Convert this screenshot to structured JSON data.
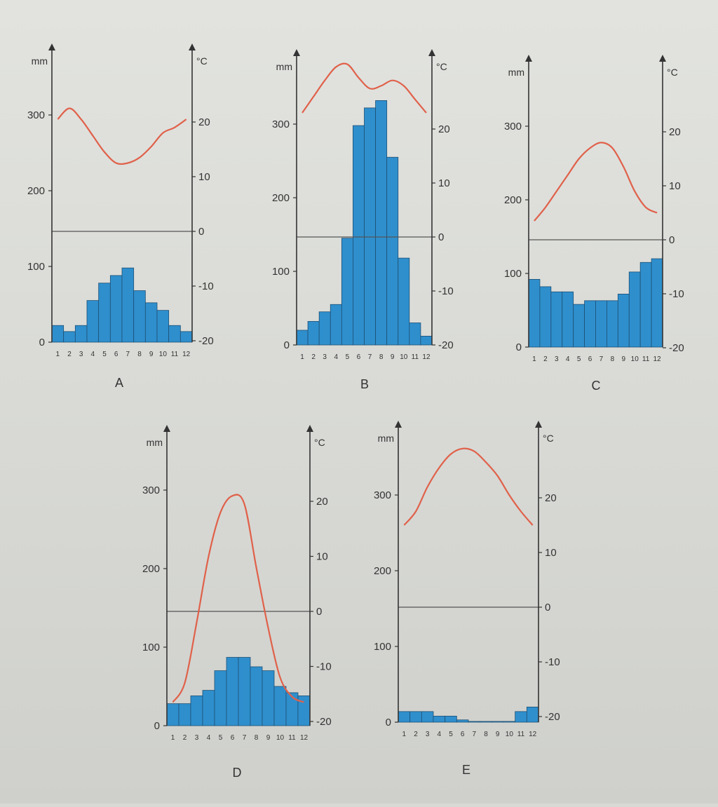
{
  "chart_data": [
    {
      "id": "A",
      "type": "bar+line",
      "label": "A",
      "precip_unit": "mm",
      "temp_unit": "°C",
      "precip_ticks": [
        "0",
        "100",
        "200",
        "300"
      ],
      "temp_ticks": [
        "-20",
        "-10",
        "0",
        "10",
        "20"
      ],
      "months": [
        "1",
        "2",
        "3",
        "4",
        "5",
        "6",
        "7",
        "8",
        "9",
        "10",
        "11",
        "12"
      ],
      "precip_ylim": [
        0,
        370
      ],
      "temp_ylim": [
        -20,
        30
      ],
      "precipitation": [
        22,
        14,
        22,
        55,
        78,
        88,
        98,
        68,
        52,
        42,
        22,
        14
      ],
      "temperature": [
        20.5,
        22.5,
        20.5,
        17.5,
        14.5,
        12.5,
        12.5,
        13.5,
        15.5,
        18,
        19,
        20.5
      ],
      "colors": {
        "bar": "#2f8fcd",
        "line": "#e0614a"
      }
    },
    {
      "id": "B",
      "type": "bar+line",
      "label": "B",
      "precip_unit": "mm",
      "temp_unit": "°C",
      "precip_ticks": [
        "0",
        "100",
        "200",
        "300"
      ],
      "temp_ticks": [
        "-20",
        "-10",
        "0",
        "10",
        "20"
      ],
      "months": [
        "1",
        "2",
        "3",
        "4",
        "5",
        "6",
        "7",
        "8",
        "9",
        "10",
        "11",
        "12"
      ],
      "precip_ylim": [
        0,
        370
      ],
      "temp_ylim": [
        -20,
        30
      ],
      "precipitation": [
        20,
        32,
        45,
        55,
        145,
        298,
        322,
        332,
        255,
        118,
        30,
        12
      ],
      "temperature": [
        23,
        26,
        29,
        31.5,
        32,
        29.5,
        27.5,
        28,
        29,
        28,
        25.5,
        23
      ],
      "colors": {
        "bar": "#2f8fcd",
        "line": "#e0614a"
      }
    },
    {
      "id": "C",
      "type": "bar+line",
      "label": "C",
      "precip_unit": "mm",
      "temp_unit": "°C",
      "precip_ticks": [
        "0",
        "100",
        "200",
        "300"
      ],
      "temp_ticks": [
        "-20",
        "-10",
        "0",
        "10",
        "20"
      ],
      "months": [
        "1",
        "2",
        "3",
        "4",
        "5",
        "6",
        "7",
        "8",
        "9",
        "10",
        "11",
        "12"
      ],
      "precip_ylim": [
        0,
        370
      ],
      "temp_ylim": [
        -20,
        30
      ],
      "precipitation": [
        92,
        82,
        75,
        75,
        58,
        63,
        63,
        63,
        72,
        102,
        115,
        120
      ],
      "temperature": [
        3.5,
        6,
        9,
        12,
        15,
        17,
        18,
        17,
        13.5,
        9,
        6,
        5
      ],
      "colors": {
        "bar": "#2f8fcd",
        "line": "#e0614a"
      }
    },
    {
      "id": "D",
      "type": "bar+line",
      "label": "D",
      "precip_unit": "mm",
      "temp_unit": "°C",
      "precip_ticks": [
        "0",
        "100",
        "200",
        "300"
      ],
      "temp_ticks": [
        "-20",
        "-10",
        "0",
        "10",
        "20"
      ],
      "months": [
        "1",
        "2",
        "3",
        "4",
        "5",
        "6",
        "7",
        "8",
        "9",
        "10",
        "11",
        "12"
      ],
      "precip_ylim": [
        0,
        370
      ],
      "temp_ylim": [
        -20,
        30
      ],
      "precipitation": [
        28,
        28,
        38,
        45,
        70,
        87,
        87,
        75,
        70,
        50,
        42,
        38
      ],
      "temperature": [
        -16.5,
        -13,
        -2,
        10,
        18,
        21,
        19.5,
        8,
        -3,
        -12,
        -15.5,
        -16.5
      ],
      "colors": {
        "bar": "#2f8fcd",
        "line": "#e0614a"
      }
    },
    {
      "id": "E",
      "type": "bar+line",
      "label": "E",
      "precip_unit": "mm",
      "temp_unit": "°C",
      "precip_ticks": [
        "0",
        "100",
        "200",
        "300"
      ],
      "temp_ticks": [
        "-20",
        "-10",
        "0",
        "10",
        "20"
      ],
      "months": [
        "1",
        "2",
        "3",
        "4",
        "5",
        "6",
        "7",
        "8",
        "9",
        "10",
        "11",
        "12"
      ],
      "precip_ylim": [
        0,
        370
      ],
      "temp_ylim": [
        -20,
        30
      ],
      "precipitation": [
        14,
        14,
        14,
        8,
        8,
        3,
        1,
        1,
        1,
        1,
        14,
        20
      ],
      "temperature": [
        15,
        17.5,
        22,
        25.5,
        28,
        29,
        28.5,
        26.5,
        24,
        20.5,
        17.5,
        15
      ],
      "colors": {
        "bar": "#2f8fcd",
        "line": "#e0614a"
      }
    }
  ]
}
